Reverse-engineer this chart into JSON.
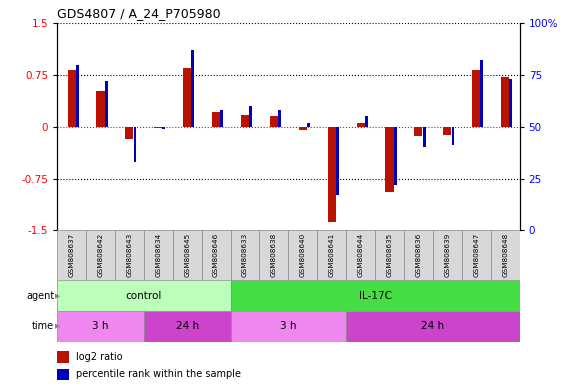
{
  "title": "GDS4807 / A_24_P705980",
  "samples": [
    "GSM808637",
    "GSM808642",
    "GSM808643",
    "GSM808634",
    "GSM808645",
    "GSM808646",
    "GSM808633",
    "GSM808638",
    "GSM808640",
    "GSM808641",
    "GSM808644",
    "GSM808635",
    "GSM808636",
    "GSM808639",
    "GSM808647",
    "GSM808648"
  ],
  "log2_ratio": [
    0.82,
    0.52,
    -0.18,
    -0.02,
    0.85,
    0.22,
    0.17,
    0.15,
    -0.05,
    -1.38,
    0.05,
    -0.95,
    -0.14,
    -0.12,
    0.82,
    0.72
  ],
  "percentile": [
    80,
    72,
    33,
    49,
    87,
    58,
    60,
    58,
    52,
    17,
    55,
    22,
    40,
    41,
    82,
    73
  ],
  "ylim": [
    -1.5,
    1.5
  ],
  "yticks_left": [
    -1.5,
    -0.75,
    0,
    0.75,
    1.5
  ],
  "yticks_right": [
    0,
    25,
    50,
    75,
    100
  ],
  "bar_color_red": "#bb1100",
  "bar_color_blue": "#0000bb",
  "agent_control_color": "#bbffbb",
  "agent_il17c_color": "#44dd44",
  "time_3h_color": "#ee88ee",
  "time_24h_color": "#cc44cc",
  "tick_fontsize": 7.5,
  "title_fontsize": 9,
  "agent_groups": [
    {
      "label": "control",
      "start": 0,
      "end": 6,
      "color": "#bbffbb"
    },
    {
      "label": "IL-17C",
      "start": 6,
      "end": 16,
      "color": "#44dd44"
    }
  ],
  "time_groups": [
    {
      "label": "3 h",
      "start": 0,
      "end": 3,
      "color": "#ee88ee"
    },
    {
      "label": "24 h",
      "start": 3,
      "end": 6,
      "color": "#cc44cc"
    },
    {
      "label": "3 h",
      "start": 6,
      "end": 10,
      "color": "#ee88ee"
    },
    {
      "label": "24 h",
      "start": 10,
      "end": 16,
      "color": "#cc44cc"
    }
  ],
  "fig_width": 5.71,
  "fig_height": 3.84
}
